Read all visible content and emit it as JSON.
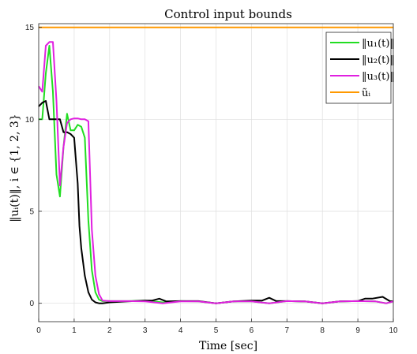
{
  "chart_data": {
    "type": "line",
    "title": "Control input bounds",
    "xlabel": "Time [sec]",
    "ylabel": "‖uᵢ(t)‖, i ∈ {1, 2, 3}",
    "xlim": [
      0,
      10
    ],
    "ylim": [
      -1,
      15.2
    ],
    "xticks": [
      "0",
      "1",
      "2",
      "3",
      "4",
      "5",
      "6",
      "7",
      "8",
      "9",
      "10"
    ],
    "yticks": [
      "0",
      "5",
      "10",
      "15"
    ],
    "grid": true,
    "legend_position": "top-right",
    "series": [
      {
        "name": "‖u₁(t)‖",
        "color": "#22dd22",
        "x": [
          0,
          0.1,
          0.2,
          0.3,
          0.4,
          0.5,
          0.6,
          0.7,
          0.8,
          0.9,
          1.0,
          1.1,
          1.2,
          1.3,
          1.4,
          1.5,
          1.6,
          1.7,
          1.8,
          2.0,
          2.5,
          3.0,
          3.5,
          4.0,
          4.5,
          5.0,
          5.5,
          6.0,
          6.5,
          7.0,
          7.5,
          8.0,
          8.5,
          9.0,
          9.5,
          9.8,
          10
        ],
        "values": [
          10.0,
          10.0,
          12.5,
          14.0,
          11.5,
          7.0,
          5.8,
          8.5,
          10.3,
          9.4,
          9.4,
          9.7,
          9.6,
          9.0,
          4.5,
          1.8,
          0.6,
          0.2,
          0.12,
          0.12,
          0.12,
          0.15,
          0.05,
          0.12,
          0.1,
          0.0,
          0.1,
          0.1,
          0.0,
          0.12,
          0.1,
          0.0,
          0.1,
          0.12,
          0.1,
          0.0,
          0.1
        ]
      },
      {
        "name": "‖u₂(t)‖",
        "color": "#000000",
        "x": [
          0,
          0.1,
          0.2,
          0.3,
          0.4,
          0.5,
          0.6,
          0.7,
          0.8,
          0.9,
          1.0,
          1.1,
          1.15,
          1.2,
          1.3,
          1.4,
          1.5,
          1.6,
          1.7,
          1.8,
          2.0,
          2.5,
          3.0,
          3.2,
          3.4,
          3.6,
          4.0,
          4.5,
          5.0,
          5.5,
          6.0,
          6.3,
          6.5,
          6.7,
          7.0,
          7.5,
          8.0,
          8.5,
          9.0,
          9.2,
          9.4,
          9.7,
          9.9,
          10
        ],
        "values": [
          10.7,
          10.9,
          11.0,
          10.0,
          10.0,
          10.0,
          10.0,
          9.3,
          9.3,
          9.2,
          9.0,
          6.5,
          4.2,
          3.0,
          1.5,
          0.6,
          0.2,
          0.05,
          0.0,
          0.0,
          0.05,
          0.1,
          0.15,
          0.15,
          0.25,
          0.1,
          0.12,
          0.12,
          0.0,
          0.1,
          0.15,
          0.15,
          0.3,
          0.12,
          0.12,
          0.1,
          0.0,
          0.1,
          0.12,
          0.25,
          0.25,
          0.35,
          0.12,
          0.1
        ]
      },
      {
        "name": "‖u₃(t)‖",
        "color": "#e020e0",
        "x": [
          0,
          0.1,
          0.2,
          0.3,
          0.4,
          0.5,
          0.6,
          0.7,
          0.8,
          0.9,
          1.0,
          1.1,
          1.2,
          1.3,
          1.4,
          1.5,
          1.6,
          1.7,
          1.8,
          2.0,
          2.5,
          3.0,
          3.5,
          4.0,
          4.5,
          5.0,
          5.5,
          6.0,
          6.5,
          7.0,
          7.5,
          8.0,
          8.5,
          9.0,
          9.5,
          9.8,
          10
        ],
        "values": [
          11.8,
          11.5,
          14.0,
          14.2,
          14.2,
          11.0,
          6.4,
          8.5,
          9.8,
          10.0,
          10.05,
          10.05,
          10.0,
          10.0,
          9.9,
          4.0,
          1.5,
          0.5,
          0.15,
          0.12,
          0.12,
          0.1,
          0.0,
          0.1,
          0.1,
          0.0,
          0.1,
          0.1,
          0.0,
          0.12,
          0.1,
          0.0,
          0.1,
          0.12,
          0.1,
          0.0,
          0.1
        ]
      },
      {
        "name": "ũᵢ",
        "color": "#ff9900",
        "x": [
          0,
          10
        ],
        "values": [
          15.0,
          15.0
        ]
      }
    ]
  }
}
